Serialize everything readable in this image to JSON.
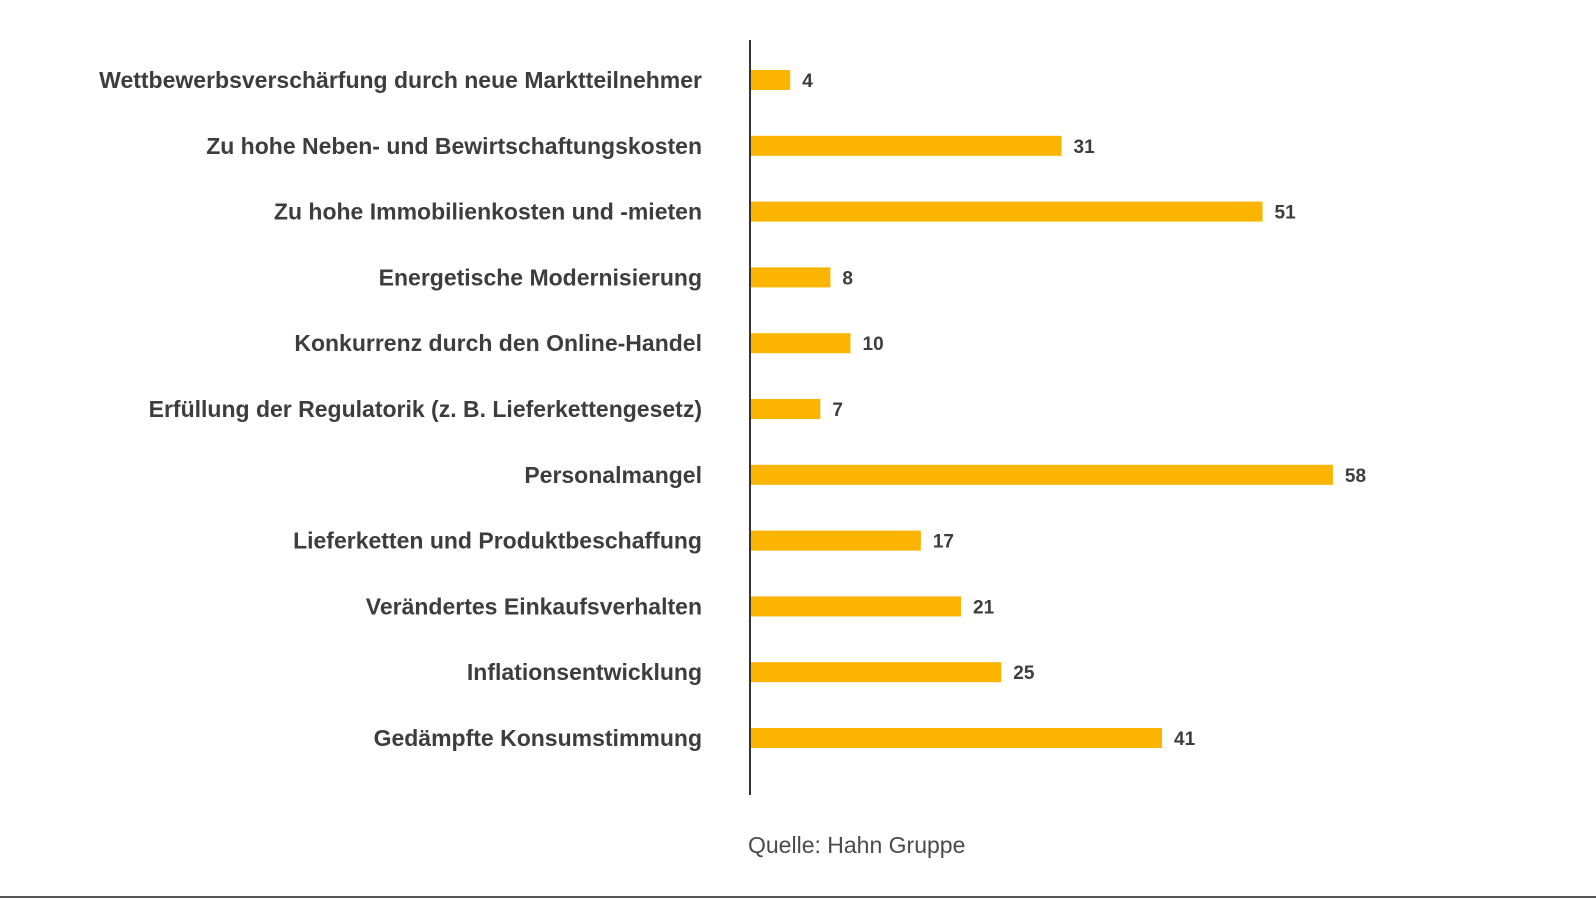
{
  "chart_data": {
    "type": "bar",
    "orientation": "horizontal",
    "categories": [
      "Wettbewerbsverschärfung durch neue Marktteilnehmer",
      "Zu hohe Neben- und Bewirtschaftungskosten",
      "Zu hohe Immobilienkosten und -mieten",
      "Energetische Modernisierung",
      "Konkurrenz durch den Online-Handel",
      "Erfüllung der Regulatorik (z. B. Lieferkettengesetz)",
      "Personalmangel",
      "Lieferketten und Produktbeschaffung",
      "Verändertes Einkaufsverhalten",
      "Inflationsentwicklung",
      "Gedämpfte Konsumstimmung"
    ],
    "values": [
      4,
      31,
      51,
      8,
      10,
      7,
      58,
      17,
      21,
      25,
      41
    ],
    "bar_color": "#fbb400",
    "data_labels": true,
    "grid": false,
    "xlim": [
      0,
      60
    ]
  },
  "source": "Quelle: Hahn Gruppe"
}
